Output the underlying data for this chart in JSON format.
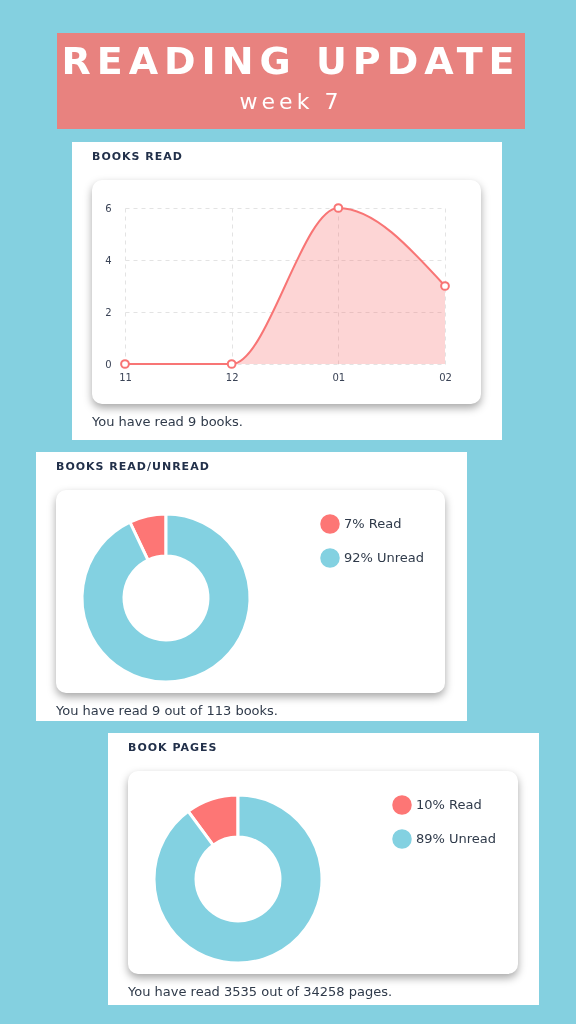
{
  "chart_data": [
    {
      "type": "other",
      "title": "READING UPDATE",
      "subtitle": "week 7"
    },
    {
      "type": "area",
      "title": "BOOKS READ",
      "categories": [
        "11",
        "12",
        "01",
        "02"
      ],
      "series": [
        {
          "color": "#f87575",
          "values": [
            0,
            0,
            6,
            3
          ]
        }
      ],
      "ylim": [
        0,
        6
      ],
      "yticks": [
        0,
        2,
        4,
        6
      ],
      "grid": true,
      "marker": "circle",
      "annotations": [
        "You have read 9 books."
      ]
    },
    {
      "type": "donut",
      "title": "BOOKS READ/UNREAD",
      "categories": [
        "7% Read",
        "92% Unread"
      ],
      "values": [
        7,
        92
      ],
      "colors": [
        "#fd7675",
        "#83d1e1"
      ],
      "legend": "right",
      "annotations": [
        "You have read 9 out of 113 books."
      ]
    },
    {
      "type": "donut",
      "title": "BOOK PAGES",
      "categories": [
        "10% Read",
        "89% Unread"
      ],
      "values": [
        10,
        89
      ],
      "colors": [
        "#fd7675",
        "#83d1e1"
      ],
      "legend": "right",
      "annotations": [
        "You have read 3535 out of 34258 pages."
      ]
    }
  ]
}
